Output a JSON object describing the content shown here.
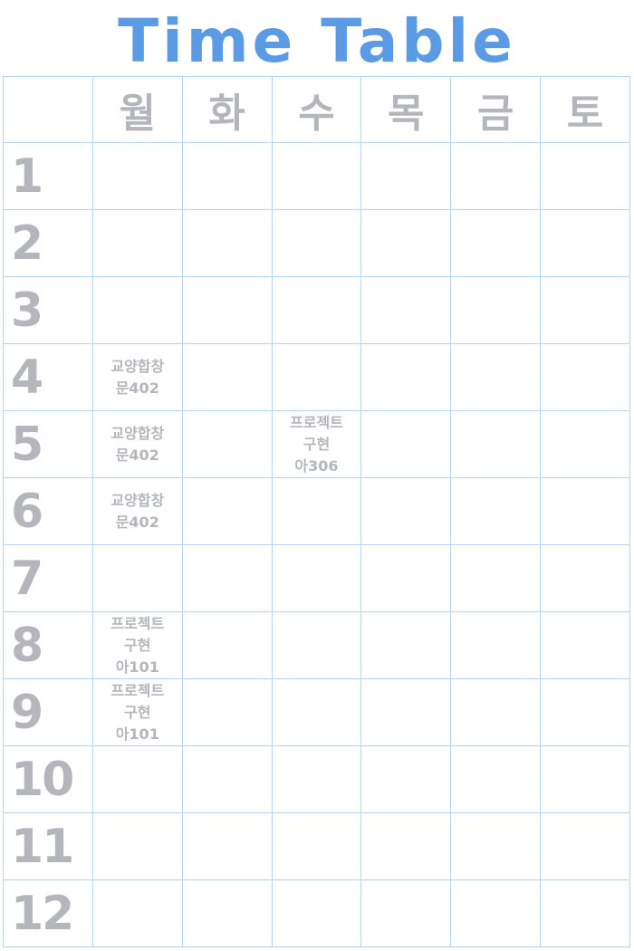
{
  "title": "Time Table",
  "colors": {
    "title": "#5b9be6",
    "text": "#b4b6bb",
    "grid": "#b8d4ea"
  },
  "days": [
    "월",
    "화",
    "수",
    "목",
    "금",
    "토"
  ],
  "periods": [
    "1",
    "2",
    "3",
    "4",
    "5",
    "6",
    "7",
    "8",
    "9",
    "10",
    "11",
    "12"
  ],
  "entries": {
    "mon_4": [
      "교양합창",
      "문402"
    ],
    "mon_5": [
      "교양합창",
      "문402"
    ],
    "mon_6": [
      "교양합창",
      "문402"
    ],
    "mon_8": [
      "프로젝트",
      "구현",
      "아101"
    ],
    "mon_9": [
      "프로젝트",
      "구현",
      "아101"
    ],
    "wed_5": [
      "프로젝트",
      "구현",
      "아306"
    ]
  }
}
